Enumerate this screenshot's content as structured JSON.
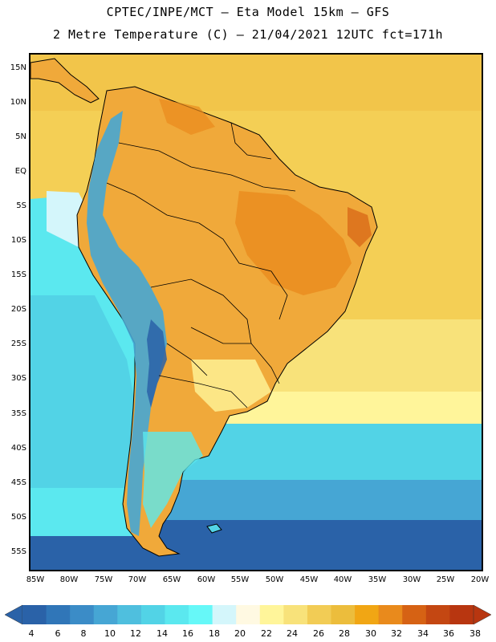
{
  "header": {
    "line1": "CPTEC/INPE/MCT –  Eta Model 15km – GFS",
    "line2": "2 Metre Temperature (C) – 21/04/2021 12UTC fct=171h"
  },
  "map": {
    "lat_labels": [
      "15N",
      "10N",
      "5N",
      "EQ",
      "5S",
      "10S",
      "15S",
      "20S",
      "25S",
      "30S",
      "35S",
      "40S",
      "45S",
      "50S",
      "55S"
    ],
    "lon_labels": [
      "85W",
      "80W",
      "75W",
      "70W",
      "65W",
      "60W",
      "55W",
      "50W",
      "45W",
      "40W",
      "35W",
      "30W",
      "25W",
      "20W"
    ],
    "ocean_color": "#f2c94c",
    "land_color": "#f0a93a",
    "border_color": "#000000"
  },
  "colorbar": {
    "labels": [
      "4",
      "6",
      "8",
      "10",
      "12",
      "14",
      "16",
      "18",
      "20",
      "22",
      "24",
      "26",
      "28",
      "30",
      "32",
      "34",
      "36",
      "38"
    ],
    "colors": [
      "#2a62a8",
      "#3076b8",
      "#3b8cc7",
      "#46a6d4",
      "#4fbfde",
      "#52d3e6",
      "#5be8ef",
      "#66f8f8",
      "#d4f6fb",
      "#fff9e2",
      "#fff59a",
      "#f8e27a",
      "#f2cc55",
      "#ecbd3c",
      "#f1a614",
      "#e98a1c",
      "#d66214",
      "#c44712",
      "#b83610"
    ]
  }
}
